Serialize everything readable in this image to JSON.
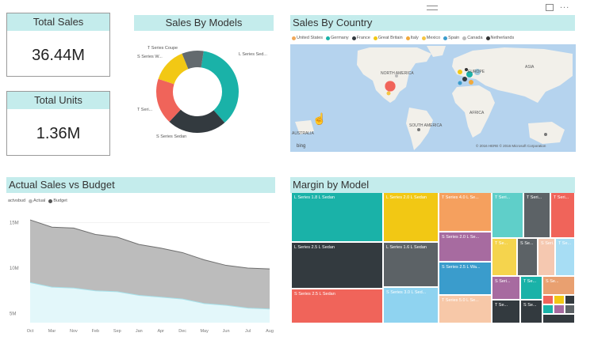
{
  "kpis": {
    "total_sales": {
      "label": "Total Sales",
      "value": "36.44M"
    },
    "total_units": {
      "label": "Total Units",
      "value": "1.36M"
    }
  },
  "donut": {
    "title": "Sales By Models",
    "labels": {
      "t_coupe": "T Series Coupe",
      "s_w": "S Series W...",
      "l_sed": "L Series Sed...",
      "t_seri": "T Seri...",
      "s_sedan": "S Series Sedan"
    },
    "colors": [
      "#1ab2a8",
      "#333a3f",
      "#f0645a",
      "#f2c814",
      "#636a6e"
    ]
  },
  "country": {
    "title": "Sales By Country",
    "legend": [
      {
        "name": "United States",
        "color": "#f0a85a"
      },
      {
        "name": "Germany",
        "color": "#1ab2a8"
      },
      {
        "name": "France",
        "color": "#333a3f"
      },
      {
        "name": "Great Britain",
        "color": "#f2c814"
      },
      {
        "name": "Italy",
        "color": "#f2a93b"
      },
      {
        "name": "Mexico",
        "color": "#f5c542"
      },
      {
        "name": "Spain",
        "color": "#3a9ccc"
      },
      {
        "name": "Canada",
        "color": "#bbbbbb"
      },
      {
        "name": "Netherlands",
        "color": "#333333"
      }
    ],
    "map_labels": {
      "north_america": "NORTH AMERICA",
      "europe": "EUROPE",
      "asia": "ASIA",
      "africa": "AFRICA",
      "south_america": "SOUTH AMERICA",
      "australia": "AUSTRALIA"
    },
    "bing": "bing",
    "copyright": "© 2016 HERE  © 2016 Microsoft Corporation"
  },
  "budget": {
    "title": "Actual Sales vs Budget",
    "legend_label": "actvsbud",
    "legend": [
      {
        "name": "Actual",
        "color": "#bbbbbb"
      },
      {
        "name": "Budget",
        "color": "#555555"
      }
    ],
    "chart_data": {
      "type": "area",
      "categories": [
        "Oct",
        "Mar",
        "Nov",
        "Feb",
        "Sep",
        "Jan",
        "Apr",
        "Dec",
        "May",
        "Jun",
        "Jul",
        "Aug"
      ],
      "series": [
        {
          "name": "Budget",
          "values": [
            15.3,
            14.5,
            14.4,
            13.7,
            13.4,
            12.6,
            12.2,
            11.7,
            10.9,
            10.3,
            10.0,
            9.9
          ]
        },
        {
          "name": "Actual",
          "values": [
            8.4,
            7.9,
            7.8,
            7.5,
            7.4,
            7.0,
            6.8,
            6.6,
            6.1,
            5.9,
            5.6,
            5.5
          ]
        }
      ],
      "yticks": [
        "15M",
        "10M",
        "5M"
      ],
      "ylim": [
        4,
        16
      ]
    }
  },
  "margin": {
    "title": "Margin by Model",
    "cells": [
      {
        "label": "L Series 1.8 L Sedan",
        "color": "#1ab2a8"
      },
      {
        "label": "L Series 2.5 L Sedan",
        "color": "#333a3f"
      },
      {
        "label": "S Series 2.5 L Sedan",
        "color": "#f0645a"
      },
      {
        "label": "L Series 2.0 L Sedan",
        "color": "#f2c814"
      },
      {
        "label": "L Series 1.6 L Sedan",
        "color": "#5c6266"
      },
      {
        "label": "S Series 3.0 L Sed...",
        "color": "#8fd3f0"
      },
      {
        "label": "T Series 4.0 L Se...",
        "color": "#f5a05e"
      },
      {
        "label": "S Series 2.0 L Se...",
        "color": "#a76ba0"
      },
      {
        "label": "S Series 2.5 L Wa...",
        "color": "#3a9ccc"
      },
      {
        "label": "T Series 5.0 L Se...",
        "color": "#f7c8a8"
      },
      {
        "label": "T Seri...",
        "color": "#5fcfc9"
      },
      {
        "label": "T Seri...",
        "color": "#5c6266"
      },
      {
        "label": "T Seri...",
        "color": "#f0645a"
      },
      {
        "label": "T Se...",
        "color": "#f5d44d"
      },
      {
        "label": "S Se...",
        "color": "#5c6266"
      },
      {
        "label": "S Seri...",
        "color": "#f5c8b0"
      },
      {
        "label": "T Se...",
        "color": "#a7ddf4"
      },
      {
        "label": "S Seri...",
        "color": "#a76ba0"
      },
      {
        "label": "T Se...",
        "color": "#1ab2a8"
      },
      {
        "label": "S Se...",
        "color": "#e9a070"
      },
      {
        "label": "T Se...",
        "color": "#333a3f"
      },
      {
        "label": "S Se...",
        "color": "#333a3f"
      }
    ]
  },
  "window": {
    "menu_icon": "hamburger-icon",
    "focus_icon": "focus-mode-icon",
    "more_label": "..."
  }
}
